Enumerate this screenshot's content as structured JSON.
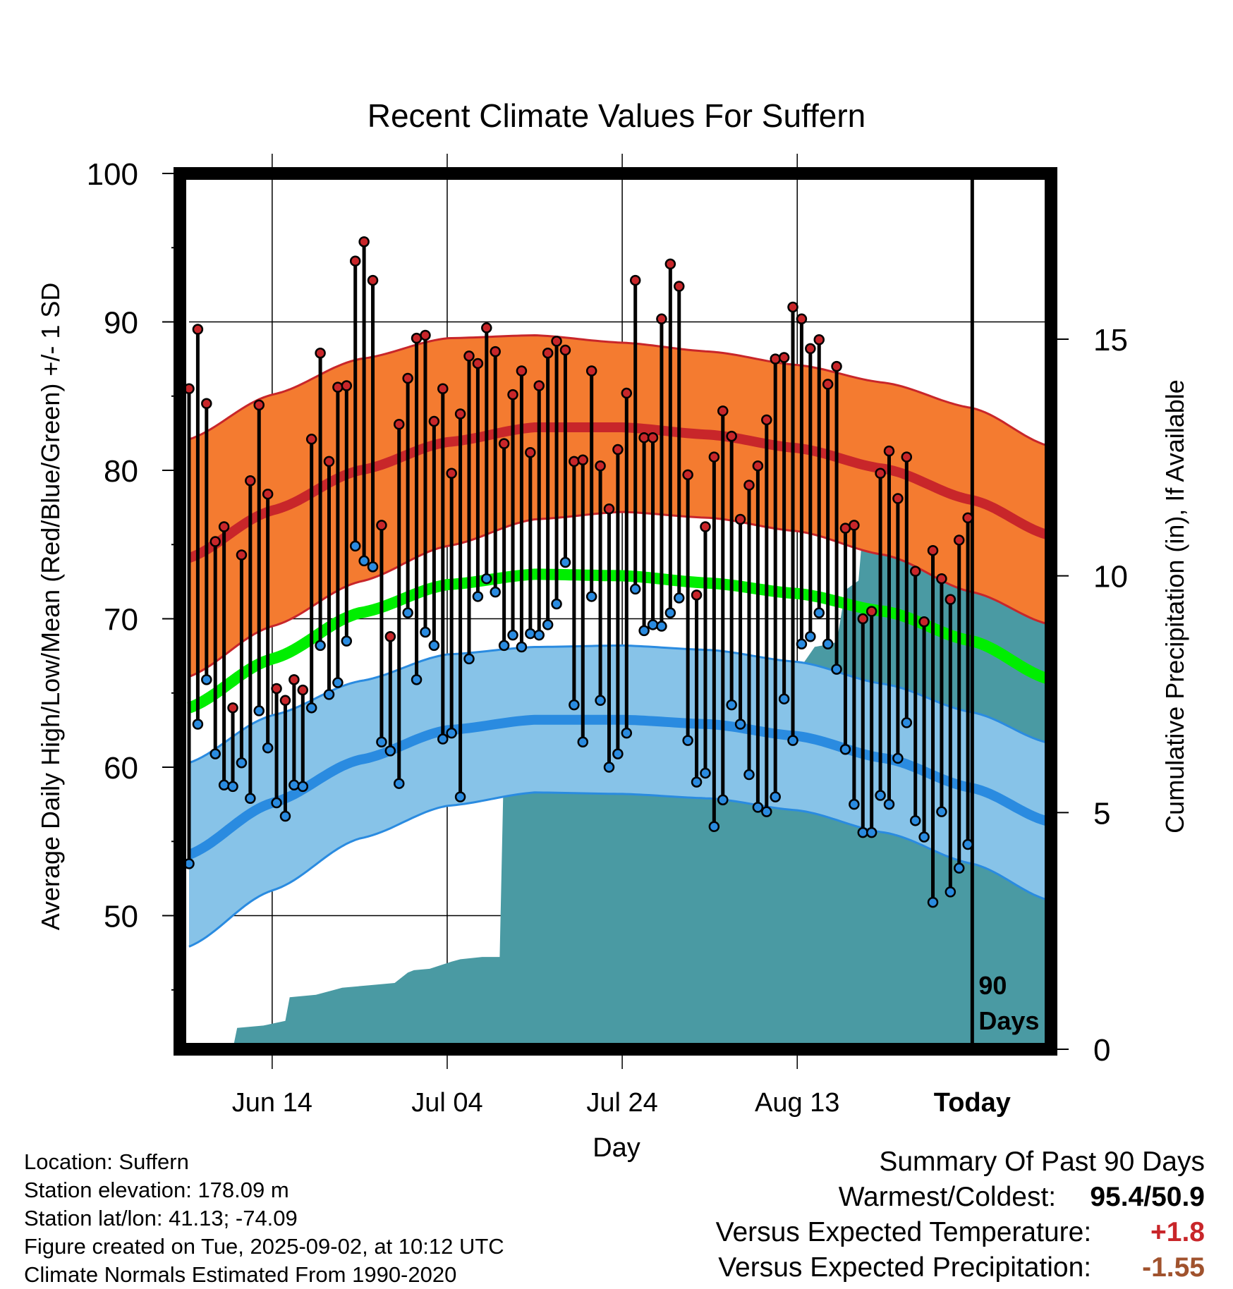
{
  "chart_data": {
    "type": "line",
    "title": "Recent Climate Values For Suffern",
    "xlabel": "Day",
    "ylabel": "Average Daily High/Low/Mean (Red/Blue/Green) +/- 1 SD",
    "y2label": "Cumulative Precipitation (in), If Available",
    "ylim": [
      41,
      100
    ],
    "y_ticks": [
      50,
      60,
      70,
      80,
      90,
      100
    ],
    "y2lim": [
      0,
      18.5
    ],
    "y2_ticks": [
      0,
      5,
      10,
      15
    ],
    "x_domain": [
      -89.5,
      9
    ],
    "x_ticks": [
      {
        "day": -80,
        "label": "Jun 14"
      },
      {
        "day": -60,
        "label": "Jul 04"
      },
      {
        "day": -40,
        "label": "Jul 24"
      },
      {
        "day": -20,
        "label": "Aug 13"
      },
      {
        "day": 0,
        "label": "Today"
      }
    ],
    "today_day": 0,
    "today_annotation": [
      "90",
      "Days"
    ],
    "grid": true,
    "normals": {
      "x": [
        -90,
        -80,
        -70,
        -60,
        -50,
        -40,
        -30,
        -20,
        -10,
        0,
        9
      ],
      "normal_high": [
        74.0,
        77.3,
        80.0,
        81.9,
        82.9,
        82.9,
        82.4,
        81.5,
        80.1,
        78.0,
        75.6
      ],
      "high_sd": [
        8.0,
        7.8,
        7.5,
        7.0,
        6.2,
        5.7,
        5.6,
        5.6,
        5.8,
        6.2,
        6.0
      ],
      "normal_mean": [
        63.9,
        67.3,
        70.4,
        72.3,
        73.0,
        72.9,
        72.4,
        71.7,
        70.5,
        68.5,
        65.9
      ],
      "normal_low": [
        54.0,
        57.6,
        60.5,
        62.5,
        63.2,
        63.2,
        62.9,
        62.1,
        60.6,
        58.6,
        56.3
      ],
      "low_sd": [
        6.2,
        5.9,
        5.3,
        5.1,
        4.9,
        5.0,
        5.0,
        5.0,
        5.0,
        5.1,
        5.3
      ]
    },
    "series": [
      {
        "name": "High",
        "color": "#c8262a",
        "values": [
          85.5,
          89.5,
          84.5,
          75.2,
          76.2,
          64.0,
          74.3,
          79.3,
          84.4,
          78.4,
          65.3,
          64.5,
          65.9,
          65.2,
          82.1,
          87.9,
          80.6,
          85.6,
          85.7,
          94.1,
          95.4,
          92.8,
          76.3,
          68.8,
          83.1,
          86.2,
          88.9,
          89.1,
          83.3,
          85.5,
          79.8,
          83.8,
          87.7,
          87.2,
          89.6,
          88.0,
          81.8,
          85.1,
          86.7,
          81.2,
          85.7,
          87.9,
          88.7,
          88.1,
          80.6,
          80.7,
          86.7,
          80.3,
          77.4,
          81.4,
          85.2,
          92.8,
          82.2,
          82.2,
          90.2,
          93.9,
          92.4,
          79.7,
          71.6,
          76.2,
          80.9,
          84.0,
          82.3,
          76.7,
          79.0,
          80.3,
          83.4,
          87.5,
          87.6,
          91.0,
          90.2,
          88.2,
          88.8,
          85.8,
          87.0,
          76.1,
          76.3,
          70.0,
          70.5,
          79.8,
          81.3,
          78.1,
          80.9,
          73.2,
          69.8,
          74.6,
          72.7,
          71.3,
          75.3,
          76.8
        ]
      },
      {
        "name": "Low",
        "color": "#2a8be0",
        "values": [
          53.5,
          62.9,
          65.9,
          60.9,
          58.8,
          58.7,
          60.3,
          57.9,
          63.8,
          61.3,
          57.6,
          56.7,
          58.8,
          58.7,
          64.0,
          68.2,
          64.9,
          65.7,
          68.5,
          74.9,
          73.9,
          73.5,
          61.7,
          61.1,
          58.9,
          70.4,
          65.9,
          69.1,
          68.2,
          61.9,
          62.3,
          58.0,
          67.3,
          71.5,
          72.7,
          71.8,
          68.2,
          68.9,
          68.1,
          69.0,
          68.9,
          69.6,
          71.0,
          73.8,
          64.2,
          61.7,
          71.5,
          64.5,
          60.0,
          60.9,
          62.3,
          72.0,
          69.2,
          69.6,
          69.5,
          70.4,
          71.4,
          61.8,
          59.0,
          59.6,
          56.0,
          57.8,
          64.2,
          62.9,
          59.5,
          57.3,
          57.0,
          58.0,
          64.6,
          61.8,
          68.3,
          68.8,
          70.4,
          68.3,
          66.6,
          61.2,
          57.5,
          55.6,
          55.6,
          58.1,
          57.5,
          60.6,
          63.0,
          56.4,
          55.3,
          50.9,
          57.0,
          51.6,
          53.2,
          54.8
        ]
      },
      {
        "name": "Cumulative Precipitation",
        "color": "#4a9aa3",
        "x": [
          -90,
          -84.5,
          -84,
          -81,
          -78.5,
          -78,
          -75,
          -73,
          -72,
          -69,
          -66,
          -64.5,
          -63.8,
          -62,
          -59.5,
          -58.5,
          -56,
          -54,
          -53.5,
          -52.5,
          -49.5,
          -43,
          -37,
          -36,
          -35,
          -34,
          -33,
          -24,
          -22,
          -21,
          -18,
          -16.5,
          -15.5,
          -14.5,
          -13,
          -12.5,
          9
        ],
        "values": [
          0,
          0,
          0.45,
          0.5,
          0.6,
          1.1,
          1.15,
          1.25,
          1.3,
          1.35,
          1.4,
          1.62,
          1.67,
          1.7,
          1.85,
          1.9,
          1.95,
          1.95,
          6.25,
          6.25,
          6.3,
          6.35,
          6.4,
          6.5,
          6.55,
          6.9,
          7.5,
          7.55,
          7.6,
          7.7,
          8.5,
          8.55,
          8.6,
          9.7,
          9.9,
          11.0,
          11.0
        ]
      }
    ]
  },
  "station_info": {
    "location": "Location: Suffern",
    "elevation": "Station elevation: 178.09 m",
    "latlon": "Station lat/lon: 41.13; -74.09",
    "created": "Figure created on Tue, 2025-09-02, at 10:12 UTC",
    "normals": "Climate Normals Estimated From 1990-2020"
  },
  "summary": {
    "heading": "Summary Of Past 90 Days",
    "warmest_coldest_label": "Warmest/Coldest:",
    "warmest_coldest_value": "95.4/50.9",
    "temp_label": "Versus Expected Temperature:",
    "temp_value": "+1.8",
    "temp_color": "#c8262a",
    "precip_label": "Versus Expected Precipitation:",
    "precip_value": "-1.55",
    "precip_color": "#a0522d"
  },
  "colors": {
    "high_band": "#f47b30",
    "high_line": "#c8262a",
    "low_band": "#87c3e8",
    "low_line": "#2a8be0",
    "mean_line": "#00ee00",
    "precip_fill": "#4a9aa3",
    "frame": "#000000"
  }
}
